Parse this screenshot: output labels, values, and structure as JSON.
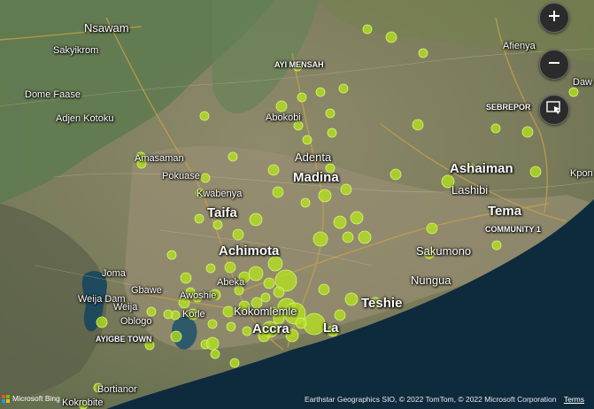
{
  "places": [
    {
      "name": "Nsawam",
      "cls": "p-md"
    },
    {
      "name": "Sakyikrom",
      "cls": "p-cap"
    },
    {
      "name": "Dome Faase",
      "cls": "p-cap"
    },
    {
      "name": "Adjen Kotoku",
      "cls": "p-cap"
    },
    {
      "name": "AYI MENSAH",
      "cls": "p-sm"
    },
    {
      "name": "Abokobi",
      "cls": "p-cap"
    },
    {
      "name": "Afienya",
      "cls": "p-cap"
    },
    {
      "name": "Daw",
      "cls": "p-cap"
    },
    {
      "name": "SEBREPOR",
      "cls": "p-sm"
    },
    {
      "name": "Amasaman",
      "cls": "p-cap"
    },
    {
      "name": "Pokuase",
      "cls": "p-cap"
    },
    {
      "name": "Kwabenya",
      "cls": "p-cap"
    },
    {
      "name": "Adenta",
      "cls": "p-md"
    },
    {
      "name": "Madina",
      "cls": "p-lg"
    },
    {
      "name": "Ashaiman",
      "cls": "p-lg"
    },
    {
      "name": "Lashibi",
      "cls": "p-md"
    },
    {
      "name": "Kpon",
      "cls": "p-cap"
    },
    {
      "name": "Taifa",
      "cls": "p-lg"
    },
    {
      "name": "Tema",
      "cls": "p-lg"
    },
    {
      "name": "COMMUNITY 1",
      "cls": "p-sm"
    },
    {
      "name": "Achimota",
      "cls": "p-lg"
    },
    {
      "name": "Sakumono",
      "cls": "p-md"
    },
    {
      "name": "Joma",
      "cls": "p-cap"
    },
    {
      "name": "Abeka",
      "cls": "p-cap"
    },
    {
      "name": "Nungua",
      "cls": "p-md"
    },
    {
      "name": "Gbawe",
      "cls": "p-cap"
    },
    {
      "name": "Weija Dam",
      "cls": "p-cap"
    },
    {
      "name": "Weija",
      "cls": "p-cap"
    },
    {
      "name": "Awoshie",
      "cls": "p-cap"
    },
    {
      "name": "Teshie",
      "cls": "p-lg"
    },
    {
      "name": "Oblogo",
      "cls": "p-cap"
    },
    {
      "name": "Korle",
      "cls": "p-cap"
    },
    {
      "name": "Kokomlemle",
      "cls": "p-md"
    },
    {
      "name": "Accra",
      "cls": "p-lg"
    },
    {
      "name": "La",
      "cls": "p-lg"
    },
    {
      "name": "AYIGBE TOWN",
      "cls": "p-sm"
    },
    {
      "name": "Bortianor",
      "cls": "p-cap"
    },
    {
      "name": "Kokrobite",
      "cls": "p-cap"
    }
  ],
  "controls": {
    "zoom_in_icon": "plus-icon",
    "zoom_out_icon": "minus-icon",
    "select_icon": "selection-cursor-icon"
  },
  "marker_color": "#b5e61d",
  "attribution": {
    "logo_text": "Microsoft Bing",
    "text": "Earthstar Geographics SIO, © 2022 TomTom, © 2022 Microsoft Corporation",
    "terms": "Terms"
  }
}
